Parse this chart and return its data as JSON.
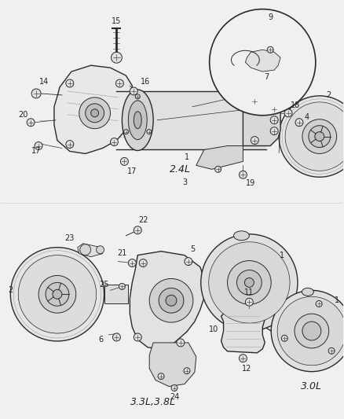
{
  "bg_color": "#f0f0f0",
  "fig_width": 4.38,
  "fig_height": 5.33,
  "dpi": 100,
  "top_label": "2.4L",
  "mid_label": "3.3L,3.8L",
  "bot_label": "3.0L",
  "line_color": "#2a2a2a",
  "fill_light": "#d8d8d8",
  "fill_mid": "#c8c8c8",
  "fill_dark": "#b8b8b8"
}
